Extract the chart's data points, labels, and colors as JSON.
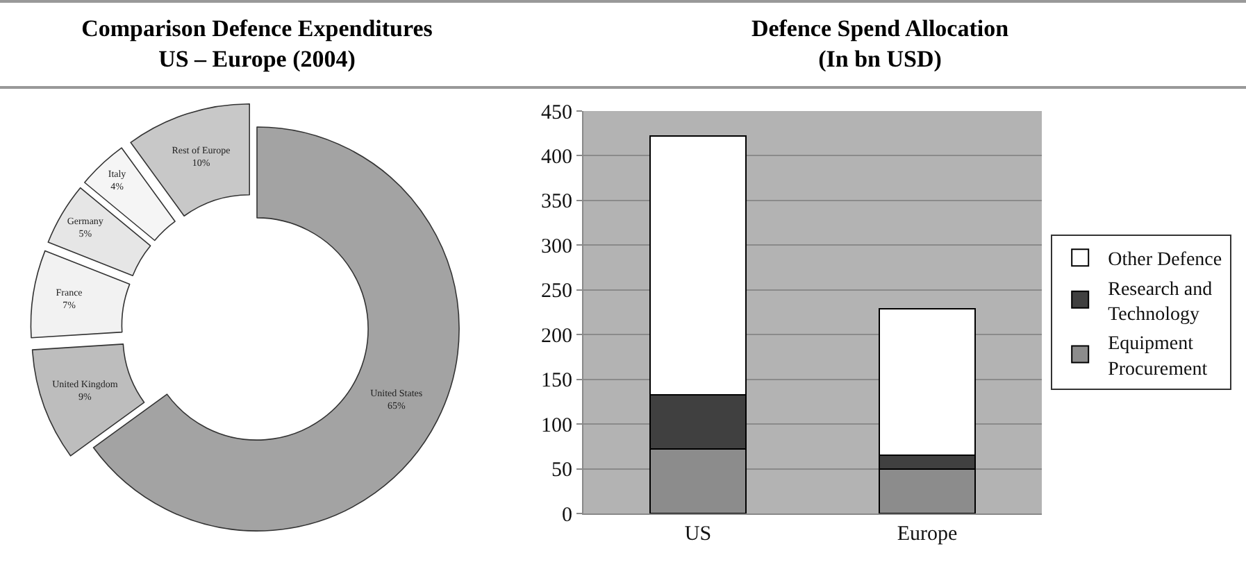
{
  "chart_data": [
    {
      "type": "donut",
      "title": "Comparison Defence Expenditures\nUS – Europe (2004)",
      "categories": [
        "United States",
        "United Kingdom",
        "France",
        "Germany",
        "Italy",
        "Rest of Europe"
      ],
      "values": [
        65,
        9,
        7,
        5,
        4,
        10
      ],
      "value_labels": [
        "65%",
        "9%",
        "7%",
        "5%",
        "4%",
        "10%"
      ],
      "colors": [
        "#a3a3a3",
        "#bdbdbd",
        "#f2f2f2",
        "#e6e6e6",
        "#f5f5f5",
        "#c8c8c8"
      ],
      "legend": false
    },
    {
      "type": "bar",
      "title": "Defence Spend Allocation\n(In bn USD)",
      "categories": [
        "US",
        "Europe"
      ],
      "stacked": true,
      "ylim": [
        0,
        450
      ],
      "yticks": [
        0,
        50,
        100,
        150,
        200,
        250,
        300,
        350,
        400,
        450
      ],
      "grid": "y",
      "legend": "right",
      "series": [
        {
          "name": "Equipment Procurement",
          "color": "#8c8c8c",
          "values": [
            72,
            50
          ]
        },
        {
          "name": "Research and Technology",
          "color": "#404040",
          "values": [
            61,
            15
          ]
        },
        {
          "name": "Other Defence",
          "color": "#ffffff",
          "values": [
            289,
            164
          ]
        }
      ]
    }
  ]
}
